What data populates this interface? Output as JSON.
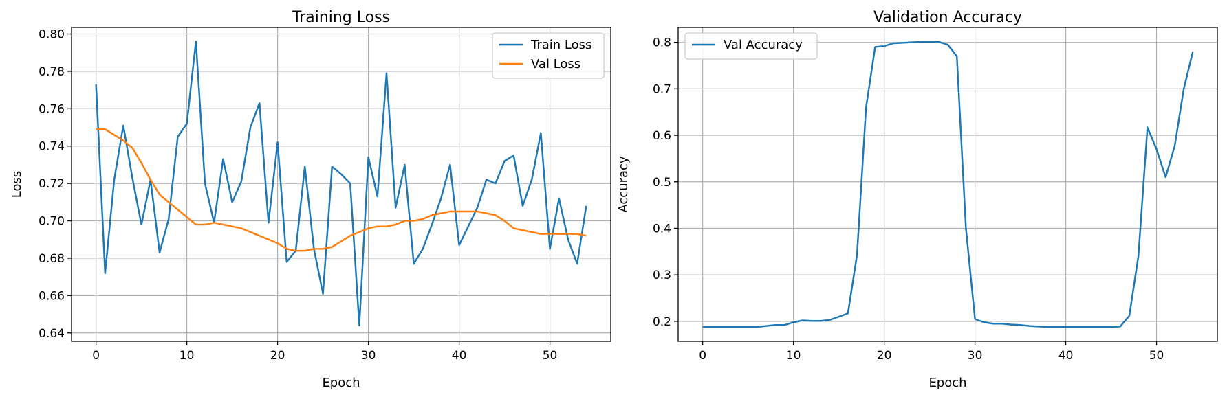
{
  "chart_data": [
    {
      "type": "line",
      "title": "Training Loss",
      "xlabel": "Epoch",
      "ylabel": "Loss",
      "xlim": [
        -2.7,
        56.7
      ],
      "ylim": [
        0.6355,
        0.8035
      ],
      "xticks": [
        0,
        10,
        20,
        30,
        40,
        50
      ],
      "yticks": [
        0.64,
        0.66,
        0.68,
        0.7,
        0.72,
        0.74,
        0.76,
        0.78,
        0.8
      ],
      "ytick_decimals": 2,
      "grid": true,
      "legend_position": "upper right",
      "series": [
        {
          "name": "Train Loss",
          "color": "#1f77b4",
          "x": [
            0,
            1,
            2,
            3,
            4,
            5,
            6,
            7,
            8,
            9,
            10,
            11,
            12,
            13,
            14,
            15,
            16,
            17,
            18,
            19,
            20,
            21,
            22,
            23,
            24,
            25,
            26,
            27,
            28,
            29,
            30,
            31,
            32,
            33,
            34,
            35,
            36,
            37,
            38,
            39,
            40,
            41,
            42,
            43,
            44,
            45,
            46,
            47,
            48,
            49,
            50,
            51,
            52,
            53,
            54
          ],
          "y": [
            0.773,
            0.672,
            0.722,
            0.751,
            0.723,
            0.698,
            0.722,
            0.683,
            0.701,
            0.745,
            0.752,
            0.796,
            0.72,
            0.699,
            0.733,
            0.71,
            0.721,
            0.75,
            0.763,
            0.699,
            0.742,
            0.678,
            0.684,
            0.729,
            0.685,
            0.661,
            0.729,
            0.725,
            0.72,
            0.644,
            0.734,
            0.713,
            0.779,
            0.707,
            0.73,
            0.677,
            0.685,
            0.698,
            0.712,
            0.73,
            0.687,
            0.697,
            0.707,
            0.722,
            0.72,
            0.732,
            0.735,
            0.708,
            0.722,
            0.747,
            0.685,
            0.712,
            0.69,
            0.677,
            0.708
          ]
        },
        {
          "name": "Val Loss",
          "color": "#ff7f0e",
          "x": [
            0,
            1,
            2,
            3,
            4,
            5,
            6,
            7,
            8,
            9,
            10,
            11,
            12,
            13,
            14,
            15,
            16,
            17,
            18,
            19,
            20,
            21,
            22,
            23,
            24,
            25,
            26,
            27,
            28,
            29,
            30,
            31,
            32,
            33,
            34,
            35,
            36,
            37,
            38,
            39,
            40,
            41,
            42,
            43,
            44,
            45,
            46,
            47,
            48,
            49,
            50,
            51,
            52,
            53,
            54
          ],
          "y": [
            0.749,
            0.749,
            0.746,
            0.743,
            0.739,
            0.731,
            0.722,
            0.714,
            0.71,
            0.706,
            0.702,
            0.698,
            0.698,
            0.699,
            0.698,
            0.697,
            0.696,
            0.694,
            0.692,
            0.69,
            0.688,
            0.685,
            0.684,
            0.684,
            0.685,
            0.685,
            0.686,
            0.689,
            0.692,
            0.694,
            0.696,
            0.697,
            0.697,
            0.698,
            0.7,
            0.7,
            0.701,
            0.703,
            0.704,
            0.705,
            0.705,
            0.705,
            0.705,
            0.704,
            0.703,
            0.7,
            0.696,
            0.695,
            0.694,
            0.693,
            0.693,
            0.693,
            0.693,
            0.693,
            0.692
          ]
        }
      ]
    },
    {
      "type": "line",
      "title": "Validation Accuracy",
      "xlabel": "Epoch",
      "ylabel": "Accuracy",
      "xlim": [
        -2.7,
        56.7
      ],
      "ylim": [
        0.157,
        0.832
      ],
      "xticks": [
        0,
        10,
        20,
        30,
        40,
        50
      ],
      "yticks": [
        0.2,
        0.3,
        0.4,
        0.5,
        0.6,
        0.7,
        0.8
      ],
      "ytick_decimals": 1,
      "grid": true,
      "legend_position": "upper left",
      "series": [
        {
          "name": "Val Accuracy",
          "color": "#1f77b4",
          "x": [
            0,
            1,
            2,
            3,
            4,
            5,
            6,
            7,
            8,
            9,
            10,
            11,
            12,
            13,
            14,
            15,
            16,
            17,
            18,
            19,
            20,
            21,
            22,
            23,
            24,
            25,
            26,
            27,
            28,
            29,
            30,
            31,
            32,
            33,
            34,
            35,
            36,
            37,
            38,
            39,
            40,
            41,
            42,
            43,
            44,
            45,
            46,
            47,
            48,
            49,
            50,
            51,
            52,
            53,
            54
          ],
          "y": [
            0.188,
            0.188,
            0.188,
            0.188,
            0.188,
            0.188,
            0.188,
            0.19,
            0.192,
            0.192,
            0.198,
            0.202,
            0.201,
            0.201,
            0.203,
            0.21,
            0.217,
            0.342,
            0.66,
            0.79,
            0.792,
            0.798,
            0.799,
            0.8,
            0.801,
            0.801,
            0.801,
            0.795,
            0.77,
            0.4,
            0.205,
            0.198,
            0.195,
            0.195,
            0.193,
            0.192,
            0.19,
            0.189,
            0.188,
            0.188,
            0.188,
            0.188,
            0.188,
            0.188,
            0.188,
            0.188,
            0.189,
            0.212,
            0.34,
            0.617,
            0.57,
            0.51,
            0.577,
            0.7,
            0.78
          ]
        }
      ]
    }
  ]
}
